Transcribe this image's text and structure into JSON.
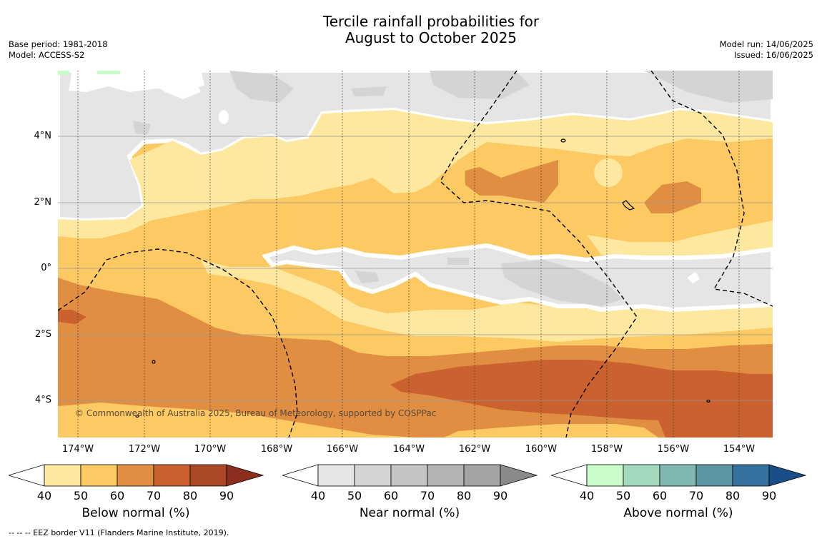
{
  "title": {
    "line1": "Tercile rainfall probabilities for",
    "line2": "August to October 2025"
  },
  "meta_left": {
    "base_period": "Base period: 1981-2018",
    "model": "Model: ACCESS-S2"
  },
  "meta_right": {
    "model_run": "Model run: 14/06/2025",
    "issued": "Issued: 16/06/2025"
  },
  "map": {
    "copyright": "© Commonwealth of Australia 2025, Bureau of Meteorology, supported by COSPPac",
    "lat_labels": [
      "4°N",
      "2°N",
      "0°",
      "2°S",
      "4°S"
    ],
    "lon_labels": [
      "174°W",
      "172°W",
      "170°W",
      "168°W",
      "166°W",
      "164°W",
      "162°W",
      "160°W",
      "158°W",
      "156°W",
      "154°W"
    ],
    "colors": {
      "below_50": "#fee8a0",
      "below_60": "#fdc962",
      "below_70": "#e08e42",
      "below_80": "#ca612e",
      "near_50": "#e5e5e5",
      "near_60": "#d4d4d4",
      "above_50": "#c8fcc8"
    }
  },
  "colorbars": [
    {
      "name": "below",
      "title": "Below normal (%)",
      "ticks": [
        "40",
        "50",
        "60",
        "70",
        "80",
        "90"
      ],
      "colors": [
        "#ffffff",
        "#fee8a0",
        "#fdc962",
        "#e08e42",
        "#ca612e",
        "#ab4826",
        "#8c2e1e"
      ]
    },
    {
      "name": "near",
      "title": "Near normal (%)",
      "ticks": [
        "40",
        "50",
        "60",
        "70",
        "80",
        "90"
      ],
      "colors": [
        "#ffffff",
        "#e5e5e5",
        "#d4d4d4",
        "#c4c4c4",
        "#b3b3b3",
        "#a3a3a3",
        "#8a8a8a"
      ]
    },
    {
      "name": "above",
      "title": "Above normal (%)",
      "ticks": [
        "40",
        "50",
        "60",
        "70",
        "80",
        "90"
      ],
      "colors": [
        "#ffffff",
        "#c8fcc8",
        "#a2d9bc",
        "#80b7b0",
        "#5d95a3",
        "#3572a0",
        "#1b4e88"
      ]
    }
  ],
  "footer": "--  --  -- EEZ border V11 (Flanders Marine Institute, 2019)."
}
